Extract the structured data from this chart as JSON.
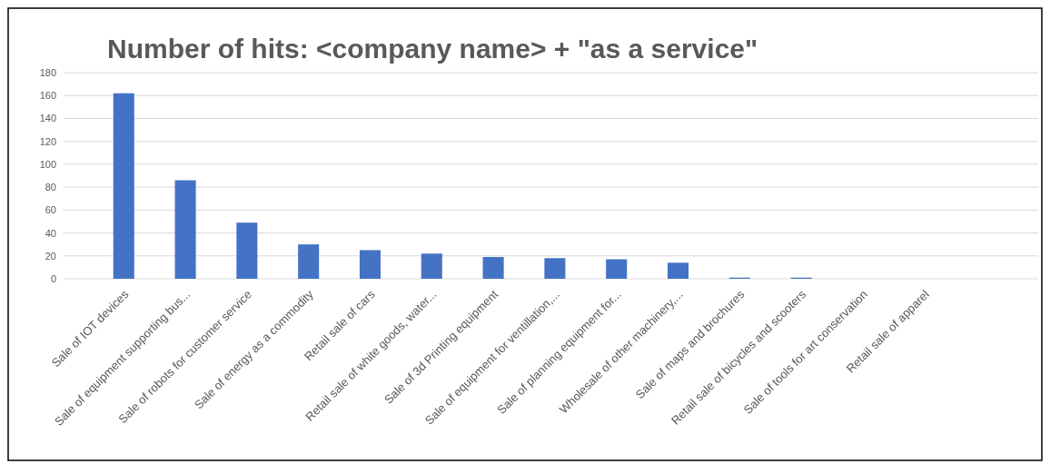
{
  "chart_data": {
    "type": "bar",
    "title": "Number of hits: <company name> + \"as a service\"",
    "categories": [
      "Sale of IOT devices",
      "Sale of equipment supporting bus...",
      "Sale of robots for customer service",
      "Sale of energy as a commodity",
      "Retail sale of cars",
      "Retail sale of white goods, water...",
      "Sale of 3d Printing equipment",
      "Sale of equipment for ventillation,...",
      "Sale of planning equipment for...",
      "Wholesale of other machinery,...",
      "Sale of maps and brochures",
      "Retail sale of bicycles and scooters",
      "Sale of tools for art conservation",
      "Retail sale of apparel"
    ],
    "values": [
      162,
      86,
      49,
      30,
      25,
      22,
      19,
      18,
      17,
      14,
      1,
      1,
      0,
      0
    ],
    "color": "#4472c4",
    "ylim": [
      0,
      180
    ],
    "yticks": [
      0,
      20,
      40,
      60,
      80,
      100,
      120,
      140,
      160,
      180
    ],
    "grid": "y"
  }
}
